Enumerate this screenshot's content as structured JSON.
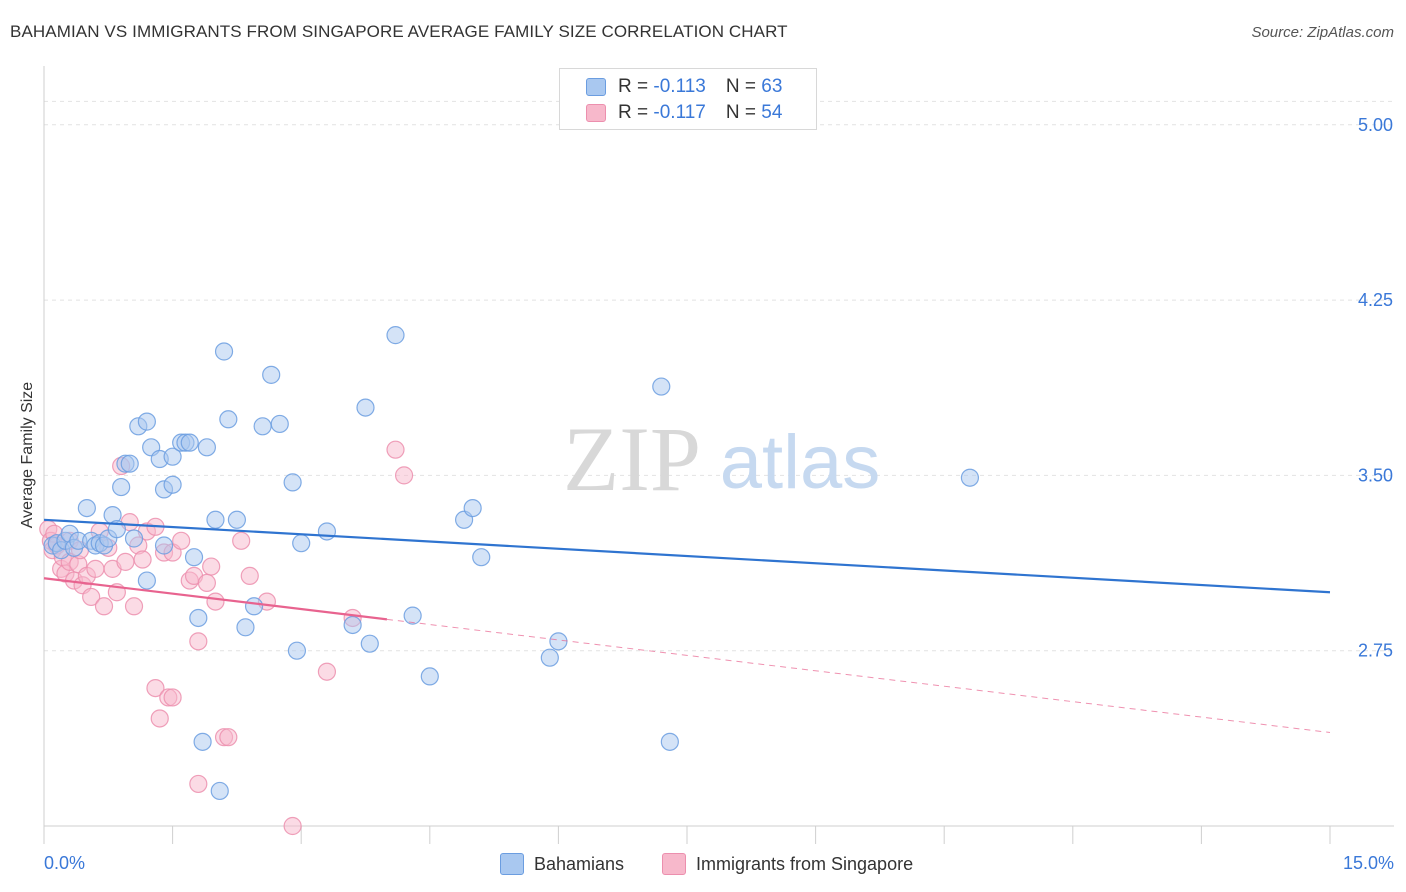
{
  "header": {
    "title": "BAHAMIAN VS IMMIGRANTS FROM SINGAPORE AVERAGE FAMILY SIZE CORRELATION CHART",
    "source": "Source: ZipAtlas.com"
  },
  "watermark": {
    "zip": "ZIP",
    "atlas": "atlas"
  },
  "legend": {
    "r_label": "R =",
    "n_label": "N =",
    "entries": [
      {
        "r": "-0.113",
        "n": "63"
      },
      {
        "r": "-0.117",
        "n": "54"
      }
    ]
  },
  "colors": {
    "blue_fill": "#a9c8f0",
    "blue_stroke": "#6b9de0",
    "blue_line": "#2f74d0",
    "pink_fill": "#f7b8cb",
    "pink_stroke": "#ec8fae",
    "pink_line": "#e8638f",
    "axis_value": "#3a78d8",
    "grid": "#e2e2e2"
  },
  "chart_data": {
    "type": "scatter",
    "title": "BAHAMIAN VS IMMIGRANTS FROM SINGAPORE AVERAGE FAMILY SIZE CORRELATION CHART",
    "xlabel": "",
    "ylabel": "Average Family Size",
    "xlim": [
      0,
      15
    ],
    "ylim": [
      2.0,
      5.2
    ],
    "x_tick_labels": {
      "min": "0.0%",
      "max": "15.0%"
    },
    "y_ticks": [
      {
        "value": 5.0,
        "label": "5.00"
      },
      {
        "value": 4.25,
        "label": "4.25"
      },
      {
        "value": 3.5,
        "label": "3.50"
      },
      {
        "value": 2.75,
        "label": "2.75"
      }
    ],
    "grid": true,
    "series": [
      {
        "name": "Bahamians",
        "r": -0.113,
        "n": 63,
        "trend": {
          "x0": 0.0,
          "y0": 3.31,
          "x1": 15.0,
          "y1": 3.0,
          "dashed_from": null
        },
        "points": [
          [
            0.1,
            3.2
          ],
          [
            0.15,
            3.21
          ],
          [
            0.2,
            3.18
          ],
          [
            0.25,
            3.22
          ],
          [
            0.3,
            3.25
          ],
          [
            0.35,
            3.19
          ],
          [
            0.4,
            3.22
          ],
          [
            0.5,
            3.36
          ],
          [
            0.55,
            3.22
          ],
          [
            0.6,
            3.2
          ],
          [
            0.65,
            3.21
          ],
          [
            0.7,
            3.2
          ],
          [
            0.75,
            3.23
          ],
          [
            0.8,
            3.33
          ],
          [
            0.85,
            3.27
          ],
          [
            0.9,
            3.45
          ],
          [
            0.95,
            3.55
          ],
          [
            1.0,
            3.55
          ],
          [
            1.05,
            3.23
          ],
          [
            1.1,
            3.71
          ],
          [
            1.2,
            3.05
          ],
          [
            1.2,
            3.73
          ],
          [
            1.25,
            3.62
          ],
          [
            1.35,
            3.57
          ],
          [
            1.4,
            3.44
          ],
          [
            1.4,
            3.2
          ],
          [
            1.5,
            3.46
          ],
          [
            1.5,
            3.58
          ],
          [
            1.6,
            3.64
          ],
          [
            1.65,
            3.64
          ],
          [
            1.7,
            3.64
          ],
          [
            1.75,
            3.15
          ],
          [
            1.8,
            2.89
          ],
          [
            1.85,
            2.36
          ],
          [
            1.9,
            3.62
          ],
          [
            2.0,
            3.31
          ],
          [
            2.05,
            2.15
          ],
          [
            2.1,
            4.03
          ],
          [
            2.15,
            3.74
          ],
          [
            2.25,
            3.31
          ],
          [
            2.35,
            2.85
          ],
          [
            2.45,
            2.94
          ],
          [
            2.55,
            3.71
          ],
          [
            2.65,
            3.93
          ],
          [
            2.75,
            3.72
          ],
          [
            2.9,
            3.47
          ],
          [
            2.95,
            2.75
          ],
          [
            3.0,
            3.21
          ],
          [
            3.3,
            3.26
          ],
          [
            3.6,
            2.86
          ],
          [
            3.75,
            3.79
          ],
          [
            3.8,
            2.78
          ],
          [
            4.1,
            4.1
          ],
          [
            4.3,
            2.9
          ],
          [
            4.5,
            2.64
          ],
          [
            4.9,
            3.31
          ],
          [
            5.0,
            3.36
          ],
          [
            5.1,
            3.15
          ],
          [
            5.9,
            2.72
          ],
          [
            6.0,
            2.79
          ],
          [
            7.2,
            3.88
          ],
          [
            7.3,
            2.36
          ],
          [
            10.8,
            3.49
          ]
        ]
      },
      {
        "name": "Immigrants from Singapore",
        "r": -0.117,
        "n": 54,
        "trend": {
          "x0": 0.0,
          "y0": 3.06,
          "x1": 15.0,
          "y1": 2.4,
          "dashed_from": 4.0
        },
        "points": [
          [
            0.05,
            3.27
          ],
          [
            0.08,
            3.22
          ],
          [
            0.1,
            3.18
          ],
          [
            0.12,
            3.25
          ],
          [
            0.15,
            3.2
          ],
          [
            0.2,
            3.1
          ],
          [
            0.22,
            3.15
          ],
          [
            0.25,
            3.08
          ],
          [
            0.3,
            3.13
          ],
          [
            0.3,
            3.22
          ],
          [
            0.35,
            3.05
          ],
          [
            0.4,
            3.12
          ],
          [
            0.42,
            3.18
          ],
          [
            0.45,
            3.03
          ],
          [
            0.5,
            3.07
          ],
          [
            0.55,
            2.98
          ],
          [
            0.6,
            3.1
          ],
          [
            0.65,
            3.26
          ],
          [
            0.7,
            2.94
          ],
          [
            0.75,
            3.19
          ],
          [
            0.8,
            3.1
          ],
          [
            0.85,
            3.0
          ],
          [
            0.9,
            3.54
          ],
          [
            0.95,
            3.13
          ],
          [
            1.0,
            3.3
          ],
          [
            1.05,
            2.94
          ],
          [
            1.1,
            3.2
          ],
          [
            1.15,
            3.14
          ],
          [
            1.2,
            3.26
          ],
          [
            1.3,
            3.28
          ],
          [
            1.3,
            2.59
          ],
          [
            1.35,
            2.46
          ],
          [
            1.4,
            3.17
          ],
          [
            1.45,
            2.55
          ],
          [
            1.5,
            3.17
          ],
          [
            1.5,
            2.55
          ],
          [
            1.6,
            3.22
          ],
          [
            1.7,
            3.05
          ],
          [
            1.75,
            3.07
          ],
          [
            1.8,
            2.79
          ],
          [
            1.8,
            2.18
          ],
          [
            1.9,
            3.04
          ],
          [
            1.95,
            3.11
          ],
          [
            2.0,
            2.96
          ],
          [
            2.1,
            2.38
          ],
          [
            2.15,
            2.38
          ],
          [
            2.3,
            3.22
          ],
          [
            2.4,
            3.07
          ],
          [
            2.6,
            2.96
          ],
          [
            2.9,
            2.0
          ],
          [
            3.3,
            2.66
          ],
          [
            3.6,
            2.89
          ],
          [
            4.1,
            3.61
          ],
          [
            4.2,
            3.5
          ]
        ]
      }
    ],
    "legend": [
      "Bahamians",
      "Immigrants from Singapore"
    ]
  }
}
